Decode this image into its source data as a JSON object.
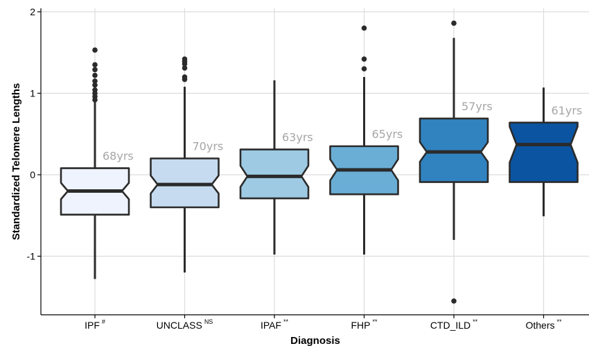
{
  "chart_data": {
    "type": "box",
    "title": "",
    "xlabel": "Diagnosis",
    "ylabel": "Standardized Telomere Lengths",
    "ylim": [
      -1.7,
      2.0
    ],
    "yticks": [
      -1,
      0,
      1,
      2
    ],
    "ytick_labels": [
      "-1",
      "0",
      "1",
      "2"
    ],
    "grid": true,
    "notched": true,
    "categories": [
      "IPF",
      "UNCLASS",
      "IPAF",
      "FHP",
      "CTD_ILD",
      "Others"
    ],
    "superscripts": [
      "#",
      "NS",
      "**",
      "**",
      "**",
      "**"
    ],
    "age_labels": [
      "68yrs",
      "70yrs",
      "63yrs",
      "65yrs",
      "57yrs",
      "61yrs"
    ],
    "colors": [
      "#eef3fd",
      "#c6dbf0",
      "#9ecae3",
      "#6aaed6",
      "#3183c0",
      "#0b54a1"
    ],
    "boxes": [
      {
        "q1": -0.49,
        "median": -0.2,
        "q3": 0.08,
        "whisker_low": -1.28,
        "whisker_high": 0.9,
        "notch": 0.1,
        "outliers": [
          0.92,
          0.96,
          1.0,
          1.04,
          1.1,
          1.15,
          1.22,
          1.29,
          1.35,
          1.53
        ]
      },
      {
        "q1": -0.4,
        "median": -0.12,
        "q3": 0.2,
        "whisker_low": -1.2,
        "whisker_high": 1.08,
        "notch": 0.11,
        "outliers": [
          1.17,
          1.2,
          1.31,
          1.36,
          1.39,
          1.42
        ]
      },
      {
        "q1": -0.29,
        "median": -0.02,
        "q3": 0.31,
        "whisker_low": -0.98,
        "whisker_high": 1.16,
        "notch": 0.13,
        "outliers": []
      },
      {
        "q1": -0.24,
        "median": 0.06,
        "q3": 0.35,
        "whisker_low": -0.98,
        "whisker_high": 1.2,
        "notch": 0.13,
        "outliers": [
          1.3,
          1.42,
          1.8
        ]
      },
      {
        "q1": -0.09,
        "median": 0.28,
        "q3": 0.69,
        "whisker_low": -0.8,
        "whisker_high": 1.68,
        "notch": 0.12,
        "outliers": [
          -1.55,
          1.86
        ]
      },
      {
        "q1": -0.09,
        "median": 0.37,
        "q3": 0.64,
        "whisker_low": -0.51,
        "whisker_high": 1.07,
        "notch": 0.22,
        "outliers": []
      }
    ]
  }
}
